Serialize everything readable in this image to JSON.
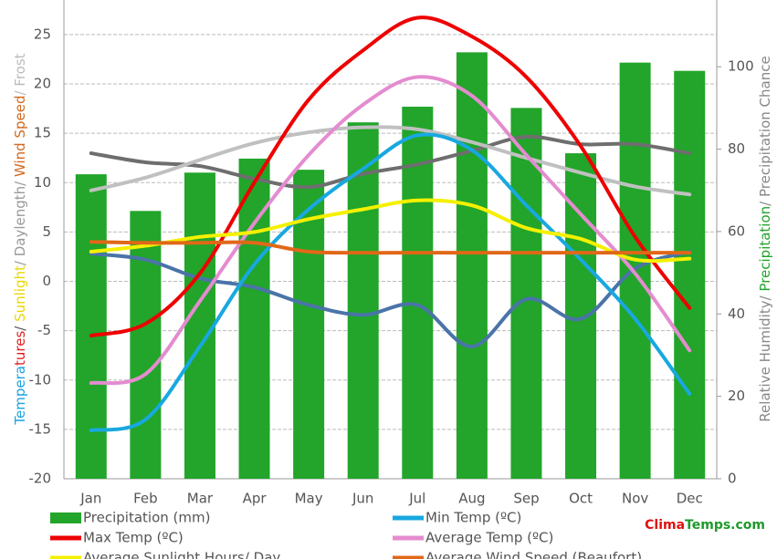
{
  "chart_data": {
    "type": "combo",
    "y_label_parts": [
      {
        "text": "Tempera",
        "color": "#1aa3e0"
      },
      {
        "text": "tures",
        "color": "#e02020"
      },
      {
        "text": "/ ",
        "color": "#555555"
      },
      {
        "text": "Sunlight",
        "color": "#e8d800"
      },
      {
        "text": "/ Daylength/ ",
        "color": "#999999"
      },
      {
        "text": "Wind Speed",
        "color": "#d2691e"
      },
      {
        "text": "/ Frost",
        "color": "#bbbbbb"
      }
    ],
    "y2_label_parts": [
      {
        "text": "Relative Humidity/ ",
        "color": "#888888"
      },
      {
        "text": "Precipitation",
        "color": "#22a52a"
      },
      {
        "text": "/ Precipitation Chance",
        "color": "#888888"
      }
    ],
    "categories": [
      "Jan",
      "Feb",
      "Mar",
      "Apr",
      "May",
      "Jun",
      "Jul",
      "Aug",
      "Sep",
      "Oct",
      "Nov",
      "Dec"
    ],
    "ylim": [
      -20,
      28.5
    ],
    "yticks": [
      -20,
      -15,
      -10,
      -5,
      0,
      5,
      10,
      15,
      20,
      25
    ],
    "y2lim": [
      0,
      116.2
    ],
    "y2ticks": [
      0,
      20,
      40,
      60,
      80,
      100
    ],
    "grid": true,
    "series": [
      {
        "name": "Precipitation (mm)",
        "kind": "bar",
        "axis": "y2",
        "color": "#22a52a",
        "values": [
          73.9,
          65,
          74.3,
          77.7,
          75,
          86.5,
          90.3,
          103.5,
          90,
          79,
          101,
          99
        ]
      },
      {
        "kind": "line",
        "axis": "y2",
        "color": "#6e6e6e",
        "values": [
          79,
          76.8,
          75.9,
          72.8,
          70.8,
          74,
          76.3,
          79.6,
          83,
          81.2,
          81.2,
          79
        ]
      },
      {
        "kind": "line",
        "color": "#c0c0c0",
        "values": [
          9.2,
          10.5,
          12.3,
          14,
          15.1,
          15.6,
          15.4,
          14.1,
          12.5,
          11,
          9.6,
          8.8
        ]
      },
      {
        "kind": "line",
        "color": "#4a74a8",
        "values": [
          2.8,
          2.2,
          0.3,
          -0.6,
          -2.4,
          -3.4,
          -2.4,
          -6.6,
          -1.8,
          -3.8,
          1.3,
          3
        ]
      },
      {
        "name": "Min Temp (ºC)",
        "kind": "line",
        "color": "#18a8e0",
        "values": [
          -15.1,
          -14,
          -6.6,
          1.7,
          7.3,
          11.4,
          14.8,
          13.3,
          7.7,
          2.2,
          -3.8,
          -11.4
        ]
      },
      {
        "name": "Average Temp (ºC)",
        "kind": "line",
        "color": "#e48cd0",
        "values": [
          -10.3,
          -9.4,
          -2,
          5.9,
          12.8,
          17.9,
          20.7,
          18.8,
          12.8,
          6.8,
          0.8,
          -7
        ]
      },
      {
        "name": "Max Temp (ºC)",
        "kind": "line",
        "color": "#ee0000",
        "values": [
          -5.5,
          -4.3,
          0.8,
          10,
          18.4,
          23.4,
          26.7,
          24.8,
          20.7,
          13.7,
          4.5,
          -2.7
        ]
      },
      {
        "name": "Average Sunlight Hours/ Day",
        "kind": "line",
        "color": "#f5f000",
        "values": [
          3,
          3.6,
          4.5,
          5,
          6.3,
          7.3,
          8.2,
          7.7,
          5.4,
          4.3,
          2.2,
          2.3
        ]
      },
      {
        "name": "Average Wind Speed (Beaufort)",
        "kind": "line",
        "color": "#e06818",
        "values": [
          4,
          3.9,
          3.9,
          3.9,
          3,
          2.9,
          2.9,
          2.9,
          2.9,
          2.9,
          2.9,
          2.9
        ]
      }
    ],
    "legend_order": [
      0,
      4,
      6,
      5,
      7,
      8
    ],
    "watermark_parts": [
      {
        "text": "Clima",
        "color": "#dd1111"
      },
      {
        "text": "Temps.com",
        "color": "#1e9a2a"
      }
    ]
  }
}
